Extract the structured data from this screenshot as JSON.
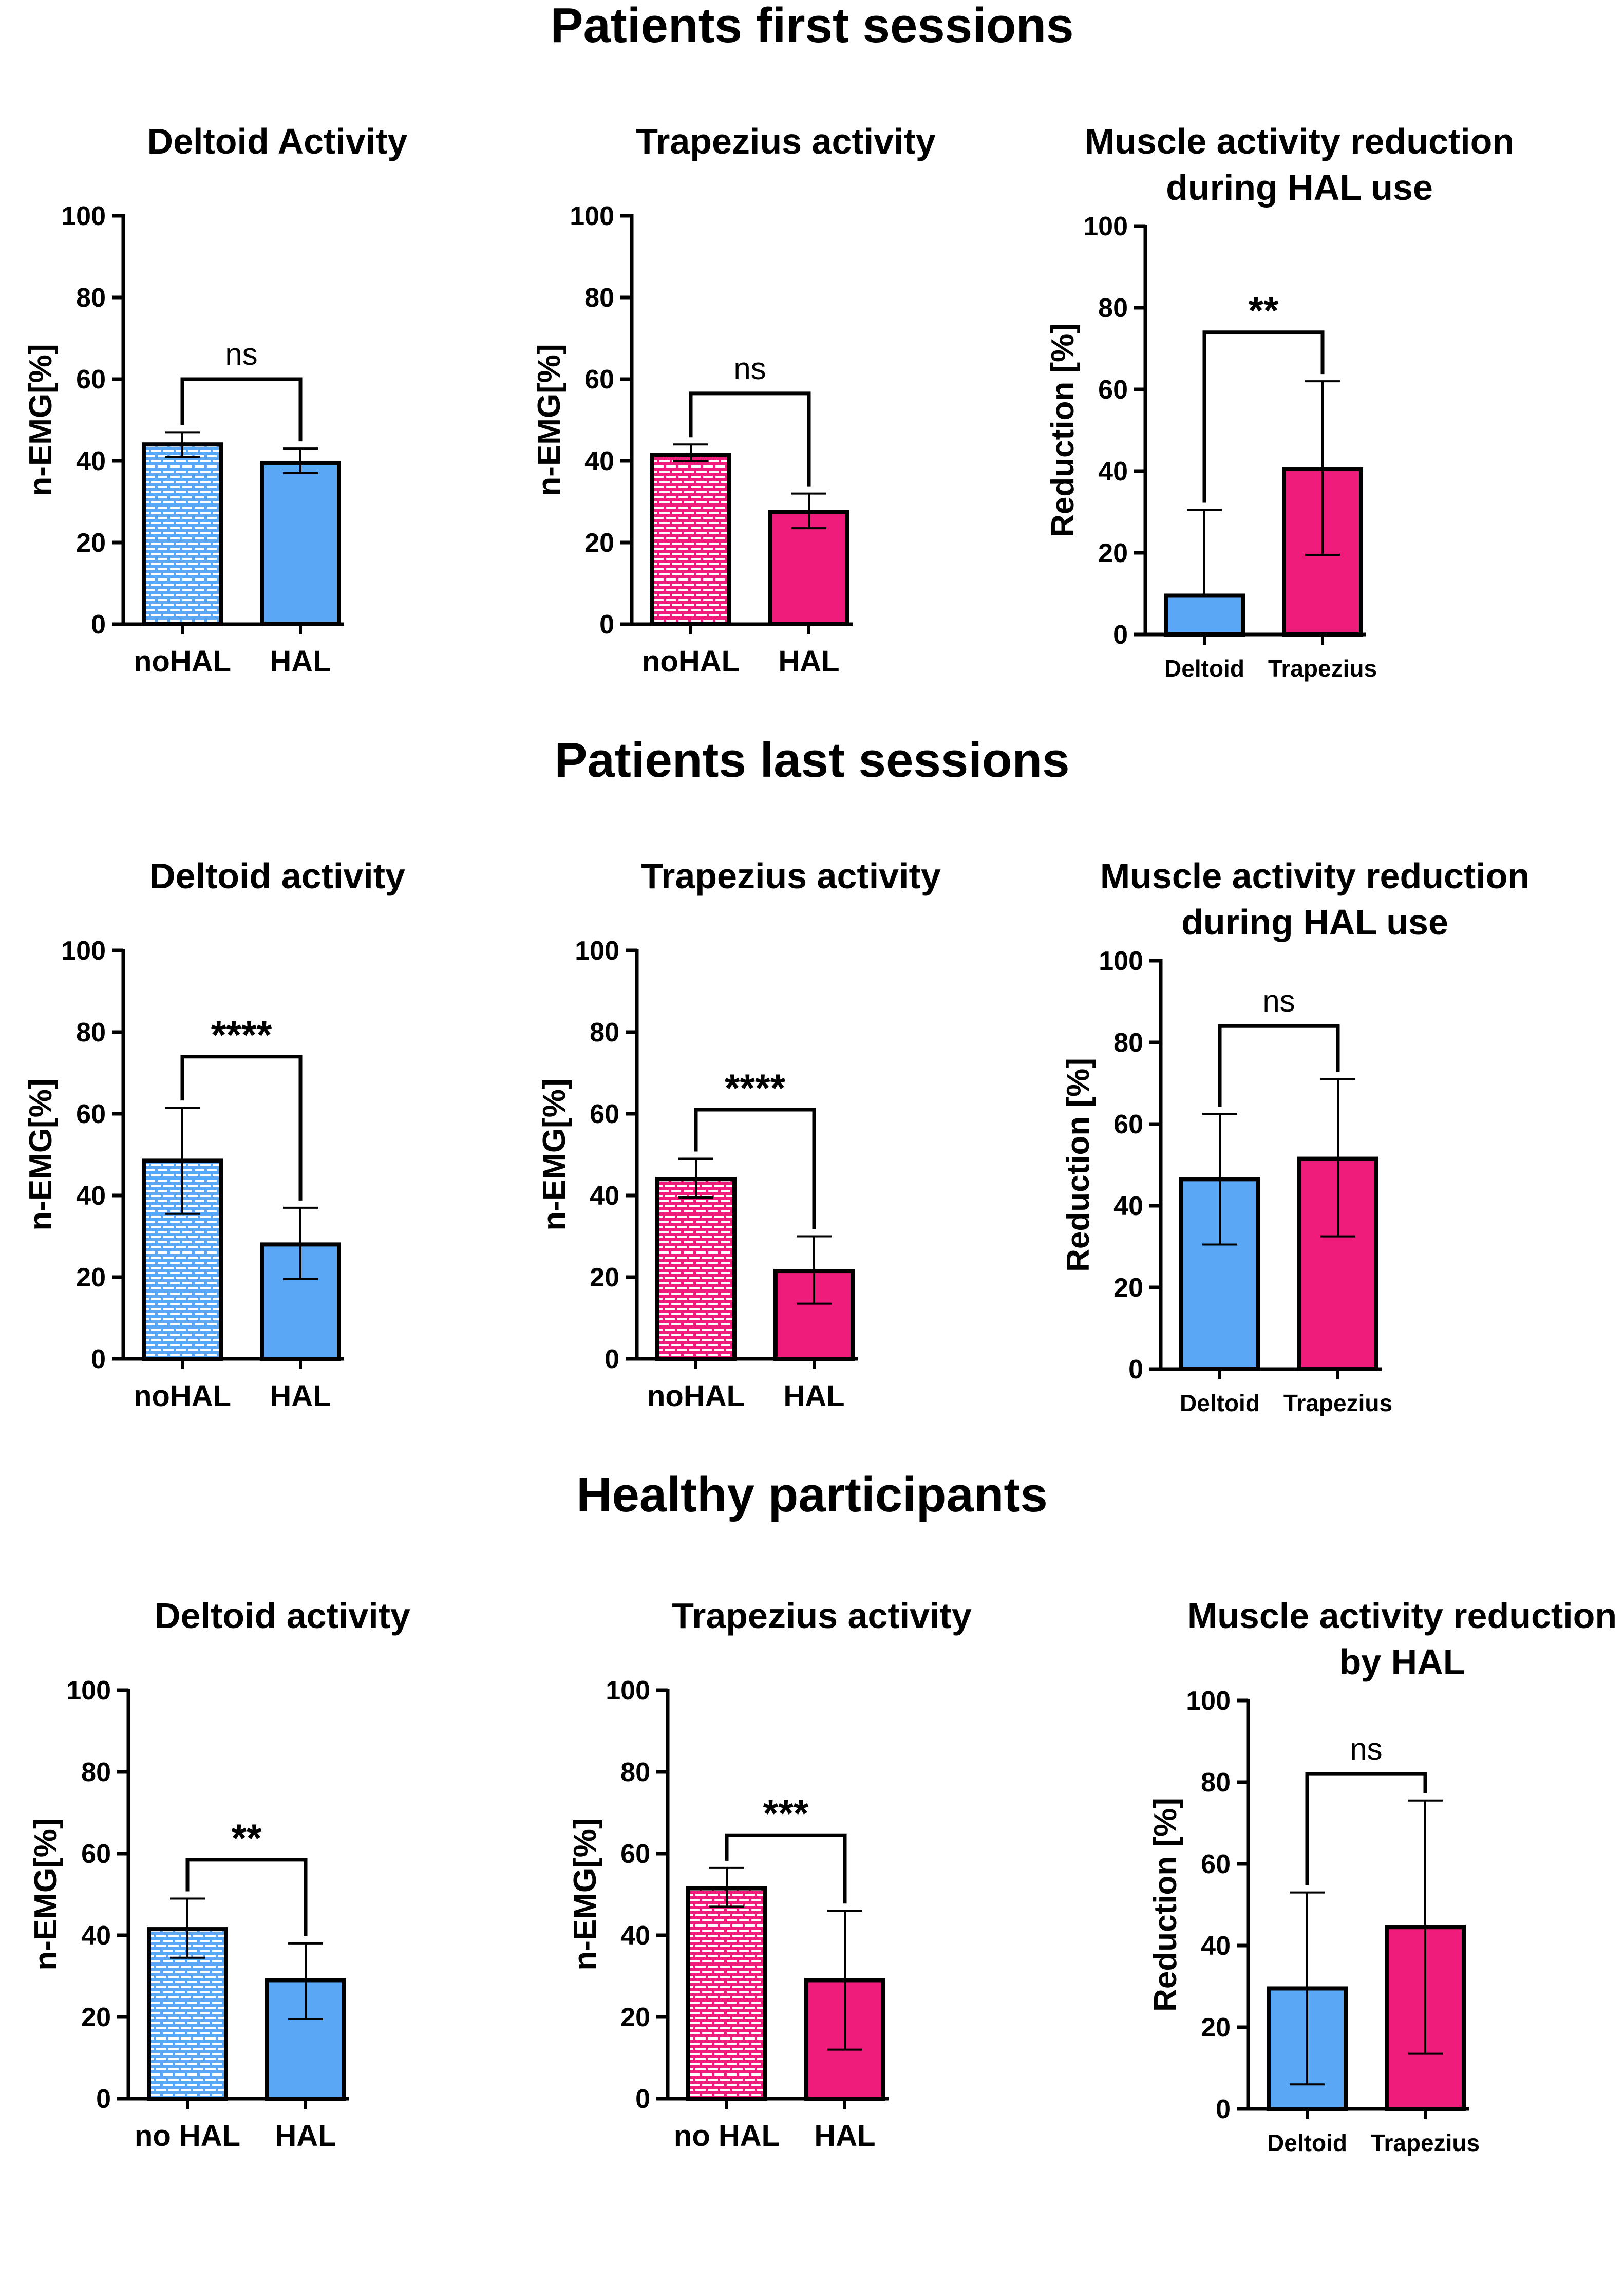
{
  "sections": [
    {
      "title": "Patients first sessions"
    },
    {
      "title": "Patients last sessions"
    },
    {
      "title": "Healthy participants"
    }
  ],
  "colors": {
    "blue": "#5aa8f5",
    "blue_pattern_bg": "#ffffff",
    "pink": "#f01c7c",
    "pink_pattern_bg": "#ffffff",
    "axis": "#000000"
  },
  "chart_data": [
    {
      "type": "bar",
      "section": 0,
      "title": "Deltoid Activity",
      "ylabel": "n-EMG[%]",
      "xlabel": "",
      "ylim": [
        0,
        100
      ],
      "yticks": [
        0,
        20,
        40,
        60,
        80,
        100
      ],
      "categories": [
        "noHAL",
        "HAL"
      ],
      "values": [
        44,
        39.5
      ],
      "err_low": [
        3,
        2.5
      ],
      "err_high": [
        3,
        3.5
      ],
      "fills": [
        "blue-pattern",
        "blue"
      ],
      "significance": {
        "text": "ns",
        "between": [
          0,
          1
        ],
        "y": 60
      }
    },
    {
      "type": "bar",
      "section": 0,
      "title": "Trapezius activity",
      "ylabel": "n-EMG[%]",
      "xlabel": "",
      "ylim": [
        0,
        100
      ],
      "yticks": [
        0,
        20,
        40,
        60,
        80,
        100
      ],
      "categories": [
        "noHAL",
        "HAL"
      ],
      "values": [
        41.5,
        27.5
      ],
      "err_low": [
        1.5,
        4
      ],
      "err_high": [
        2.5,
        4.5
      ],
      "fills": [
        "pink-pattern",
        "pink"
      ],
      "significance": {
        "text": "ns",
        "between": [
          0,
          1
        ],
        "y": 56.5
      }
    },
    {
      "type": "bar",
      "section": 0,
      "title": "Muscle activity reduction\nduring HAL use",
      "ylabel": "Reduction [%]",
      "xlabel": "",
      "ylim": [
        0,
        100
      ],
      "yticks": [
        0,
        20,
        40,
        60,
        80,
        100
      ],
      "categories": [
        "Deltoid",
        "Trapezius"
      ],
      "values": [
        9.5,
        40.5
      ],
      "err_low": [
        0,
        21
      ],
      "err_high": [
        21,
        21.5
      ],
      "fills": [
        "blue",
        "pink"
      ],
      "significance": {
        "text": "**",
        "between": [
          0,
          1
        ],
        "y": 74
      }
    },
    {
      "type": "bar",
      "section": 1,
      "title": "Deltoid activity",
      "ylabel": "n-EMG[%]",
      "xlabel": "",
      "ylim": [
        0,
        100
      ],
      "yticks": [
        0,
        20,
        40,
        60,
        80,
        100
      ],
      "categories": [
        "noHAL",
        "HAL"
      ],
      "values": [
        48.5,
        28
      ],
      "err_low": [
        13,
        8.5
      ],
      "err_high": [
        13,
        9
      ],
      "fills": [
        "blue-pattern",
        "blue"
      ],
      "significance": {
        "text": "****",
        "between": [
          0,
          1
        ],
        "y": 74
      }
    },
    {
      "type": "bar",
      "section": 1,
      "title": "Trapezius activity",
      "ylabel": "n-EMG[%]",
      "xlabel": "",
      "ylim": [
        0,
        100
      ],
      "yticks": [
        0,
        20,
        40,
        60,
        80,
        100
      ],
      "categories": [
        "noHAL",
        "HAL"
      ],
      "values": [
        44,
        21.5
      ],
      "err_low": [
        4.5,
        8
      ],
      "err_high": [
        5,
        8.5
      ],
      "fills": [
        "pink-pattern",
        "pink"
      ],
      "significance": {
        "text": "****",
        "between": [
          0,
          1
        ],
        "y": 61
      }
    },
    {
      "type": "bar",
      "section": 1,
      "title": "Muscle activity reduction\nduring HAL use",
      "ylabel": "Reduction [%]",
      "xlabel": "",
      "ylim": [
        0,
        100
      ],
      "yticks": [
        0,
        20,
        40,
        60,
        80,
        100
      ],
      "categories": [
        "Deltoid",
        "Trapezius"
      ],
      "values": [
        46.5,
        51.5
      ],
      "err_low": [
        16,
        19
      ],
      "err_high": [
        16,
        19.5
      ],
      "fills": [
        "blue",
        "pink"
      ],
      "significance": {
        "text": "ns",
        "between": [
          0,
          1
        ],
        "y": 84
      }
    },
    {
      "type": "bar",
      "section": 2,
      "title": "Deltoid activity",
      "ylabel": "n-EMG[%]",
      "xlabel": "",
      "ylim": [
        0,
        100
      ],
      "yticks": [
        0,
        20,
        40,
        60,
        80,
        100
      ],
      "categories": [
        "no HAL",
        "HAL"
      ],
      "values": [
        41.5,
        29
      ],
      "err_low": [
        7,
        9.5
      ],
      "err_high": [
        7.5,
        9
      ],
      "fills": [
        "blue-pattern",
        "blue"
      ],
      "significance": {
        "text": "**",
        "between": [
          0,
          1
        ],
        "y": 58.5
      }
    },
    {
      "type": "bar",
      "section": 2,
      "title": "Trapezius activity",
      "ylabel": "n-EMG[%]",
      "xlabel": "",
      "ylim": [
        0,
        100
      ],
      "yticks": [
        0,
        20,
        40,
        60,
        80,
        100
      ],
      "categories": [
        "no HAL",
        "HAL"
      ],
      "values": [
        51.5,
        29
      ],
      "err_low": [
        4.5,
        17
      ],
      "err_high": [
        5,
        17
      ],
      "fills": [
        "pink-pattern",
        "pink"
      ],
      "significance": {
        "text": "***",
        "between": [
          0,
          1
        ],
        "y": 64.5
      }
    },
    {
      "type": "bar",
      "section": 2,
      "title": "Muscle activity reduction\nby HAL",
      "ylabel": "Reduction [%]",
      "xlabel": "",
      "ylim": [
        0,
        100
      ],
      "yticks": [
        0,
        20,
        40,
        60,
        80,
        100
      ],
      "categories": [
        "Deltoid",
        "Trapezius"
      ],
      "values": [
        29.5,
        44.5
      ],
      "err_low": [
        23.5,
        31
      ],
      "err_high": [
        23.5,
        31
      ],
      "fills": [
        "blue",
        "pink"
      ],
      "significance": {
        "text": "ns",
        "between": [
          0,
          1
        ],
        "y": 82
      }
    }
  ]
}
